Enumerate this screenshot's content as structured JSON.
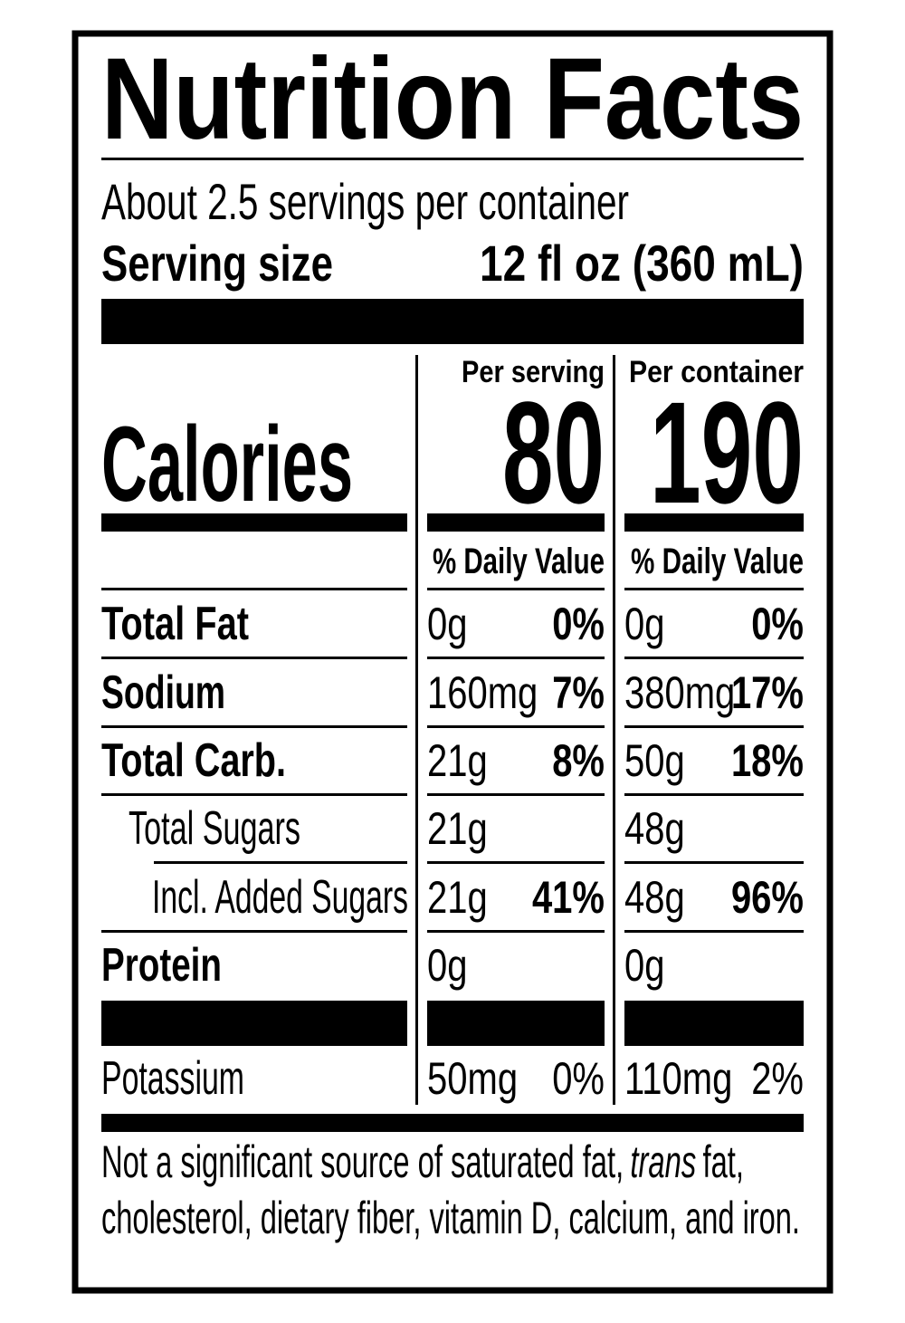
{
  "title": "Nutrition Facts",
  "servings": "About 2.5 servings per container",
  "serving_size": {
    "label": "Serving size",
    "value": "12 fl oz (360 mL)"
  },
  "calories": {
    "label": "Calories"
  },
  "columns": [
    {
      "header": "Per serving",
      "calories": "80",
      "dv_header": "% Daily Value"
    },
    {
      "header": "Per container",
      "calories": "190",
      "dv_header": "% Daily Value"
    }
  ],
  "nutrients": [
    {
      "name": "Total Fat",
      "per_serving": {
        "amount": "0g",
        "dv": "0%"
      },
      "per_container": {
        "amount": "0g",
        "dv": "0%"
      }
    },
    {
      "name": "Sodium",
      "per_serving": {
        "amount": "160mg",
        "dv": "7%"
      },
      "per_container": {
        "amount": "380mg",
        "dv": "17%"
      }
    },
    {
      "name": "Total Carb.",
      "per_serving": {
        "amount": "21g",
        "dv": "8%"
      },
      "per_container": {
        "amount": "50g",
        "dv": "18%"
      }
    },
    {
      "name": "Total Sugars",
      "per_serving": {
        "amount": "21g"
      },
      "per_container": {
        "amount": "48g"
      }
    },
    {
      "name": "Incl. Added Sugars",
      "per_serving": {
        "amount": "21g",
        "dv": "41%"
      },
      "per_container": {
        "amount": "48g",
        "dv": "96%"
      }
    },
    {
      "name": "Protein",
      "per_serving": {
        "amount": "0g"
      },
      "per_container": {
        "amount": "0g"
      }
    },
    {
      "name": "Potassium",
      "per_serving": {
        "amount": "50mg",
        "dv": "0%"
      },
      "per_container": {
        "amount": "110mg",
        "dv": "2%"
      }
    }
  ],
  "footnote": [
    [
      "Not a significant source of saturated fat,",
      "trans",
      "fat,"
    ],
    [
      "cholesterol, dietary fiber, vitamin D, calcium, and iron."
    ]
  ]
}
